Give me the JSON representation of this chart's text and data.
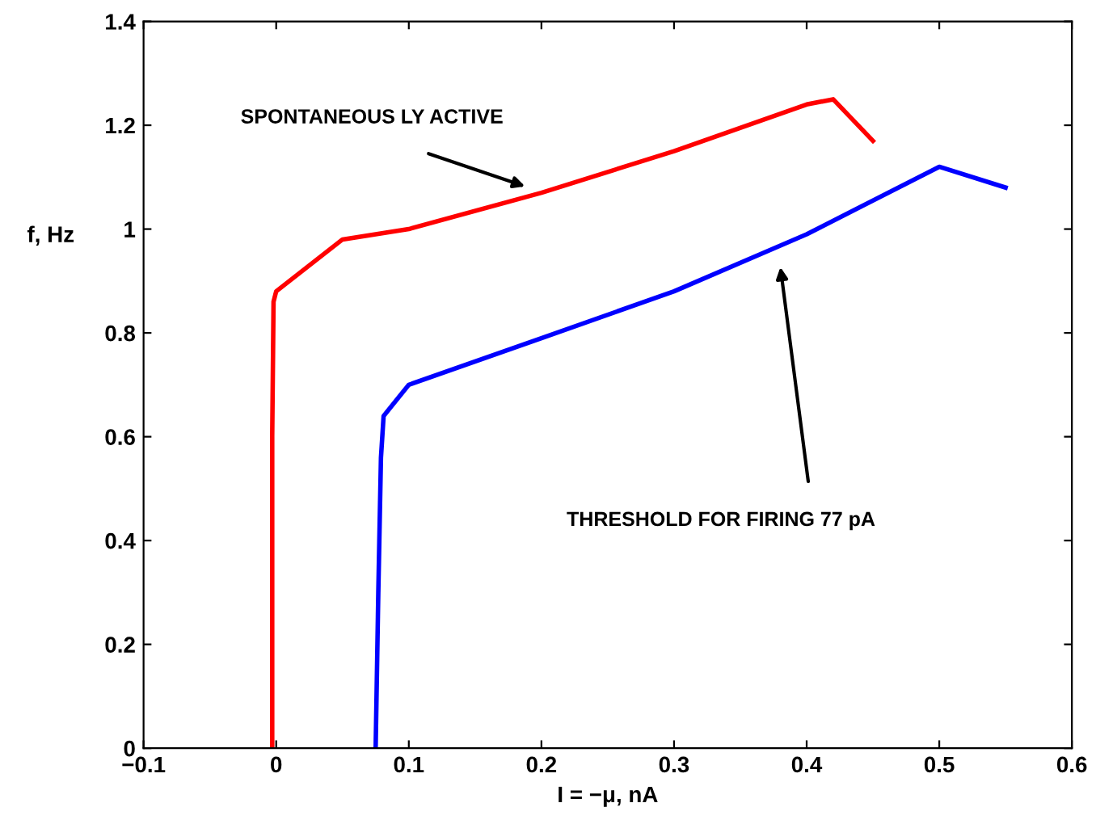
{
  "chart_data": {
    "type": "line",
    "xlabel": "I = −μ, nA",
    "ylabel": "f, Hz",
    "xlim": [
      -0.1,
      0.6
    ],
    "ylim": [
      0,
      1.4
    ],
    "xticks": [
      {
        "value": -0.1,
        "label": "−0.1"
      },
      0,
      0.1,
      0.2,
      0.3,
      0.4,
      0.5,
      0.6
    ],
    "yticks": [
      0,
      0.2,
      0.4,
      0.6,
      0.8,
      1,
      1.2,
      1.4
    ],
    "grid": false,
    "legend": false,
    "marker": "none",
    "line_style": "solid",
    "series": [
      {
        "color": "#ff0000",
        "x": [
          -0.003,
          -0.003,
          -0.002,
          0.0,
          0.05,
          0.1,
          0.2,
          0.3,
          0.4,
          0.42,
          0.45
        ],
        "values": [
          0,
          0.6,
          0.86,
          0.88,
          0.98,
          1.0,
          1.07,
          1.15,
          1.24,
          1.25,
          1.17
        ]
      },
      {
        "color": "#0000ff",
        "x": [
          0.075,
          0.077,
          0.079,
          0.081,
          0.1,
          0.2,
          0.3,
          0.4,
          0.5,
          0.55
        ],
        "values": [
          0,
          0.3,
          0.56,
          0.64,
          0.7,
          0.79,
          0.88,
          0.99,
          1.12,
          1.08
        ]
      }
    ],
    "annotations": [
      "SPONTANEOUS LY ACTIVE",
      "THRESHOLD FOR FIRING 77 pA"
    ]
  }
}
